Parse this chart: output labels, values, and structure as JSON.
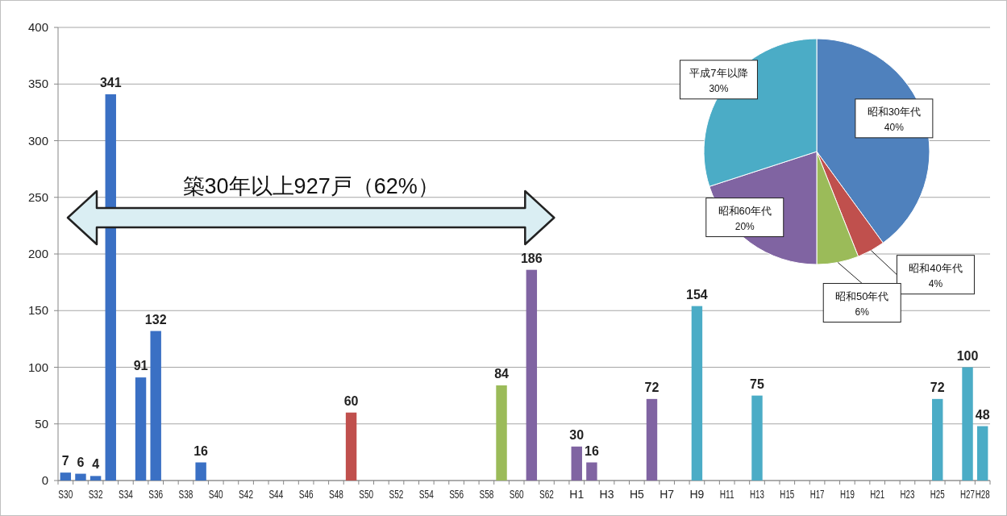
{
  "chart_data": [
    {
      "type": "bar",
      "categories": [
        "S30",
        null,
        "S32",
        null,
        "S34",
        null,
        "S36",
        null,
        "S38",
        null,
        "S40",
        null,
        "S42",
        null,
        "S44",
        null,
        "S46",
        null,
        "S48",
        null,
        "S50",
        null,
        "S52",
        null,
        "S54",
        null,
        "S56",
        null,
        "S58",
        null,
        "S60",
        null,
        "S62",
        null,
        "H1",
        null,
        "H3",
        null,
        "H5",
        null,
        "H7",
        null,
        "H9",
        null,
        "H11",
        null,
        "H13",
        null,
        "H15",
        null,
        "H17",
        null,
        "H19",
        null,
        "H21",
        null,
        "H23",
        null,
        "H25",
        null,
        "H27",
        "H28"
      ],
      "values": [
        7,
        6,
        4,
        341,
        0,
        91,
        132,
        0,
        0,
        16,
        0,
        0,
        0,
        0,
        0,
        0,
        0,
        0,
        0,
        60,
        0,
        0,
        0,
        0,
        0,
        0,
        0,
        0,
        0,
        84,
        0,
        186,
        0,
        0,
        30,
        16,
        0,
        0,
        0,
        72,
        0,
        0,
        154,
        0,
        0,
        0,
        75,
        0,
        0,
        0,
        0,
        0,
        0,
        0,
        0,
        0,
        0,
        0,
        72,
        0,
        100,
        48
      ],
      "value_labels": [
        "7",
        "6",
        "4",
        "341",
        null,
        "91",
        "132",
        null,
        null,
        "16",
        null,
        null,
        null,
        null,
        null,
        null,
        null,
        null,
        null,
        "60",
        null,
        null,
        null,
        null,
        null,
        null,
        null,
        null,
        null,
        "84",
        null,
        "186",
        null,
        null,
        "30",
        "16",
        null,
        null,
        null,
        "72",
        null,
        null,
        "154",
        null,
        null,
        null,
        "75",
        null,
        null,
        null,
        null,
        null,
        null,
        null,
        null,
        null,
        null,
        null,
        "72",
        null,
        "100",
        "48"
      ],
      "colors": [
        "#3a70c4",
        "#3a70c4",
        "#3a70c4",
        "#3a70c4",
        "#3a70c4",
        "#3a70c4",
        "#3a70c4",
        "#3a70c4",
        "#3a70c4",
        "#3a70c4",
        "#3a70c4",
        "#3a70c4",
        "#3a70c4",
        "#3a70c4",
        "#3a70c4",
        "#3a70c4",
        "#3a70c4",
        "#3a70c4",
        "#3a70c4",
        "#c0504d",
        "#c0504d",
        "#c0504d",
        "#c0504d",
        "#c0504d",
        "#c0504d",
        "#c0504d",
        "#c0504d",
        "#c0504d",
        "#c0504d",
        "#9bbb59",
        "#8064a2",
        "#8064a2",
        "#8064a2",
        "#8064a2",
        "#8064a2",
        "#8064a2",
        "#8064a2",
        "#8064a2",
        "#8064a2",
        "#8064a2",
        "#4bacc6",
        "#4bacc6",
        "#4bacc6",
        "#4bacc6",
        "#4bacc6",
        "#4bacc6",
        "#4bacc6",
        "#4bacc6",
        "#4bacc6",
        "#4bacc6",
        "#4bacc6",
        "#4bacc6",
        "#4bacc6",
        "#4bacc6",
        "#4bacc6",
        "#4bacc6",
        "#4bacc6",
        "#4bacc6",
        "#4bacc6",
        "#4bacc6",
        "#4bacc6",
        "#4bacc6"
      ],
      "ylim": [
        0,
        400
      ],
      "yticks": [
        0,
        50,
        100,
        150,
        200,
        250,
        300,
        350,
        400
      ],
      "grid": "y",
      "annotations": [
        "築30年以上927戸（62%）"
      ]
    },
    {
      "type": "pie",
      "categories": [
        "昭和30年代",
        "昭和40年代",
        "昭和50年代",
        "昭和60年代",
        "平成7年以降"
      ],
      "values": [
        40,
        4,
        6,
        20,
        30
      ],
      "value_labels": [
        "40%",
        "4%",
        "6%",
        "20%",
        "30%"
      ],
      "colors": [
        "#4f81bd",
        "#c0504d",
        "#9bbb59",
        "#8064a2",
        "#4bacc6"
      ],
      "data_labels": true
    }
  ]
}
